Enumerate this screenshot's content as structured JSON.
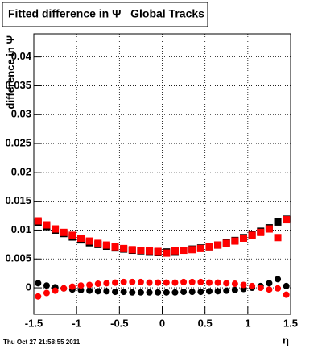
{
  "chart_data": {
    "type": "scatter",
    "title": "Fitted difference in Ψ   Global Tracks",
    "y_label": "difference in Ψ",
    "x_label": "η",
    "footer": "Thu Oct 27 21:58:55 2011",
    "xlim": [
      -1.5,
      1.5
    ],
    "xticks": [
      -1.5,
      -1,
      -0.5,
      0,
      0.5,
      1,
      1.5
    ],
    "ylim": [
      -0.0046,
      0.044
    ],
    "yticks": [
      0,
      0.005,
      0.01,
      0.015,
      0.02,
      0.025,
      0.03,
      0.035,
      0.04
    ],
    "grid": true,
    "x": [
      -1.45,
      -1.35,
      -1.25,
      -1.15,
      -1.05,
      -0.95,
      -0.85,
      -0.75,
      -0.65,
      -0.55,
      -0.45,
      -0.35,
      -0.25,
      -0.15,
      -0.05,
      0.05,
      0.15,
      0.25,
      0.35,
      0.45,
      0.55,
      0.65,
      0.75,
      0.85,
      0.95,
      1.05,
      1.15,
      1.25,
      1.35,
      1.45
    ],
    "series": [
      {
        "color": "#000000",
        "marker": "square",
        "values": [
          0.0113,
          0.0106,
          0.01,
          0.0094,
          0.0088,
          0.0083,
          0.0078,
          0.0075,
          0.0072,
          0.0069,
          0.0067,
          0.0065,
          0.0064,
          0.0063,
          0.0062,
          0.0062,
          0.0063,
          0.0065,
          0.0067,
          0.0069,
          0.0071,
          0.0074,
          0.0078,
          0.0082,
          0.0087,
          0.0092,
          0.0098,
          0.0104,
          0.0114,
          0.0119
        ]
      },
      {
        "color": "#ff0000",
        "marker": "square",
        "values": [
          0.0116,
          0.0109,
          0.0102,
          0.0096,
          0.0091,
          0.0086,
          0.0081,
          0.0077,
          0.0074,
          0.0071,
          0.0068,
          0.0066,
          0.0065,
          0.0064,
          0.0063,
          0.006,
          0.0064,
          0.0065,
          0.0066,
          0.0068,
          0.0071,
          0.0074,
          0.0077,
          0.0081,
          0.0086,
          0.0091,
          0.0096,
          0.0102,
          0.0087,
          0.0118
        ]
      },
      {
        "color": "#000000",
        "marker": "circle",
        "values": [
          0.0008,
          0.0004,
          0.0001,
          -0.0001,
          -0.0003,
          -0.0004,
          -0.0005,
          -0.0006,
          -0.0006,
          -0.0007,
          -0.0007,
          -0.0008,
          -0.0008,
          -0.0008,
          -0.0008,
          -0.0008,
          -0.0008,
          -0.0007,
          -0.0007,
          -0.0007,
          -0.0006,
          -0.0006,
          -0.0005,
          -0.0004,
          -0.0002,
          0.0,
          0.0003,
          0.0008,
          0.0015,
          0.0003
        ]
      },
      {
        "color": "#ff0000",
        "marker": "circle",
        "values": [
          -0.0015,
          -0.0009,
          -0.0005,
          -0.0001,
          0.0002,
          0.0004,
          0.0005,
          0.0007,
          0.0008,
          0.0009,
          0.001,
          0.001,
          0.001,
          0.0009,
          0.0009,
          0.0009,
          0.0009,
          0.001,
          0.001,
          0.001,
          0.0009,
          0.0009,
          0.0008,
          0.0007,
          0.0005,
          0.0003,
          0.0,
          -0.0003,
          -0.0001,
          -0.0012
        ]
      }
    ]
  }
}
